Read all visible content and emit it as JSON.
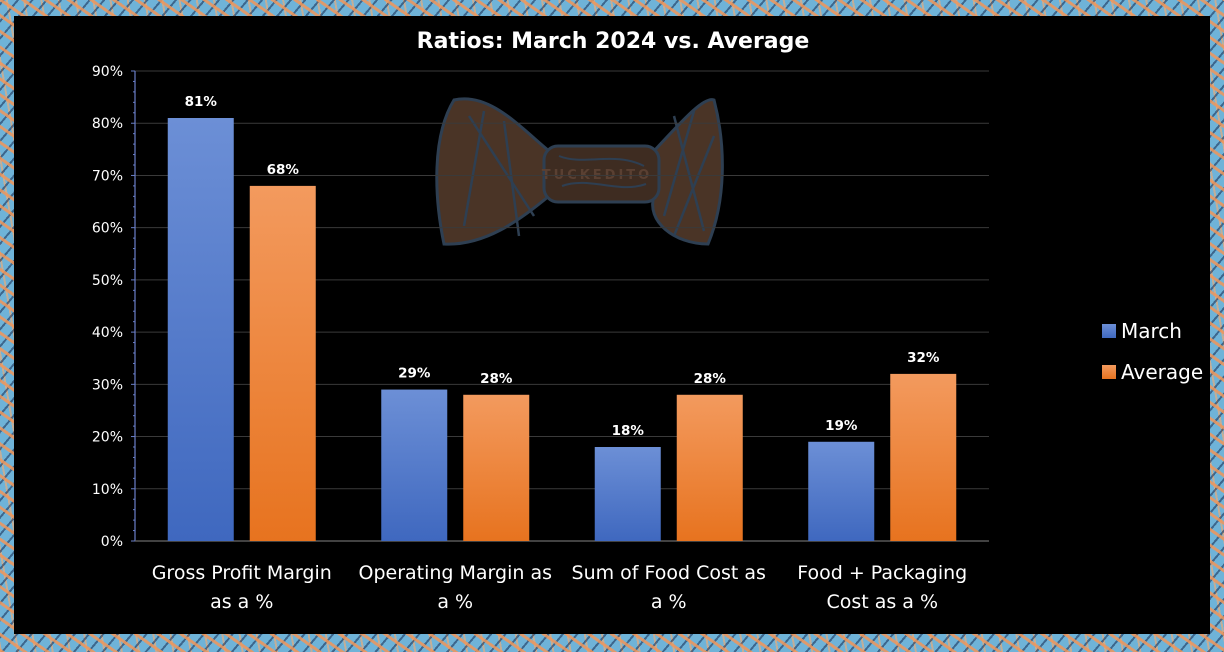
{
  "chart_data": {
    "type": "bar",
    "title": "Ratios: March 2024 vs. Average",
    "categories": [
      [
        "Gross Profit Margin",
        "as a %"
      ],
      [
        "Operating Margin as",
        "a %"
      ],
      [
        "Sum of Food Cost as",
        "a %"
      ],
      [
        "Food + Packaging",
        "Cost as a %"
      ]
    ],
    "series": [
      {
        "name": "March",
        "values": [
          81,
          29,
          18,
          19
        ],
        "labels": [
          "81%",
          "29%",
          "18%",
          "19%"
        ],
        "color_top": "#6c8fd6",
        "color_bottom": "#3f68bf"
      },
      {
        "name": "Average",
        "values": [
          68,
          28,
          28,
          32
        ],
        "labels": [
          "68%",
          "28%",
          "28%",
          "32%"
        ],
        "color_top": "#f39a5e",
        "color_bottom": "#e7731f"
      }
    ],
    "ylim": [
      0,
      90
    ],
    "yticks": [
      "0%",
      "10%",
      "20%",
      "30%",
      "40%",
      "50%",
      "60%",
      "70%",
      "80%",
      "90%"
    ],
    "ytick_values": [
      0,
      10,
      20,
      30,
      40,
      50,
      60,
      70,
      80,
      90
    ],
    "xlabel": "",
    "ylabel": "",
    "grid": true,
    "legend_position": "right"
  },
  "watermark": {
    "text": "TUCKEDITO",
    "icon": "bow-tie-icon"
  },
  "colors": {
    "background": "#000000",
    "gridline": "#3a3a3a",
    "axis": "#6a7fc9",
    "text": "#ffffff"
  }
}
